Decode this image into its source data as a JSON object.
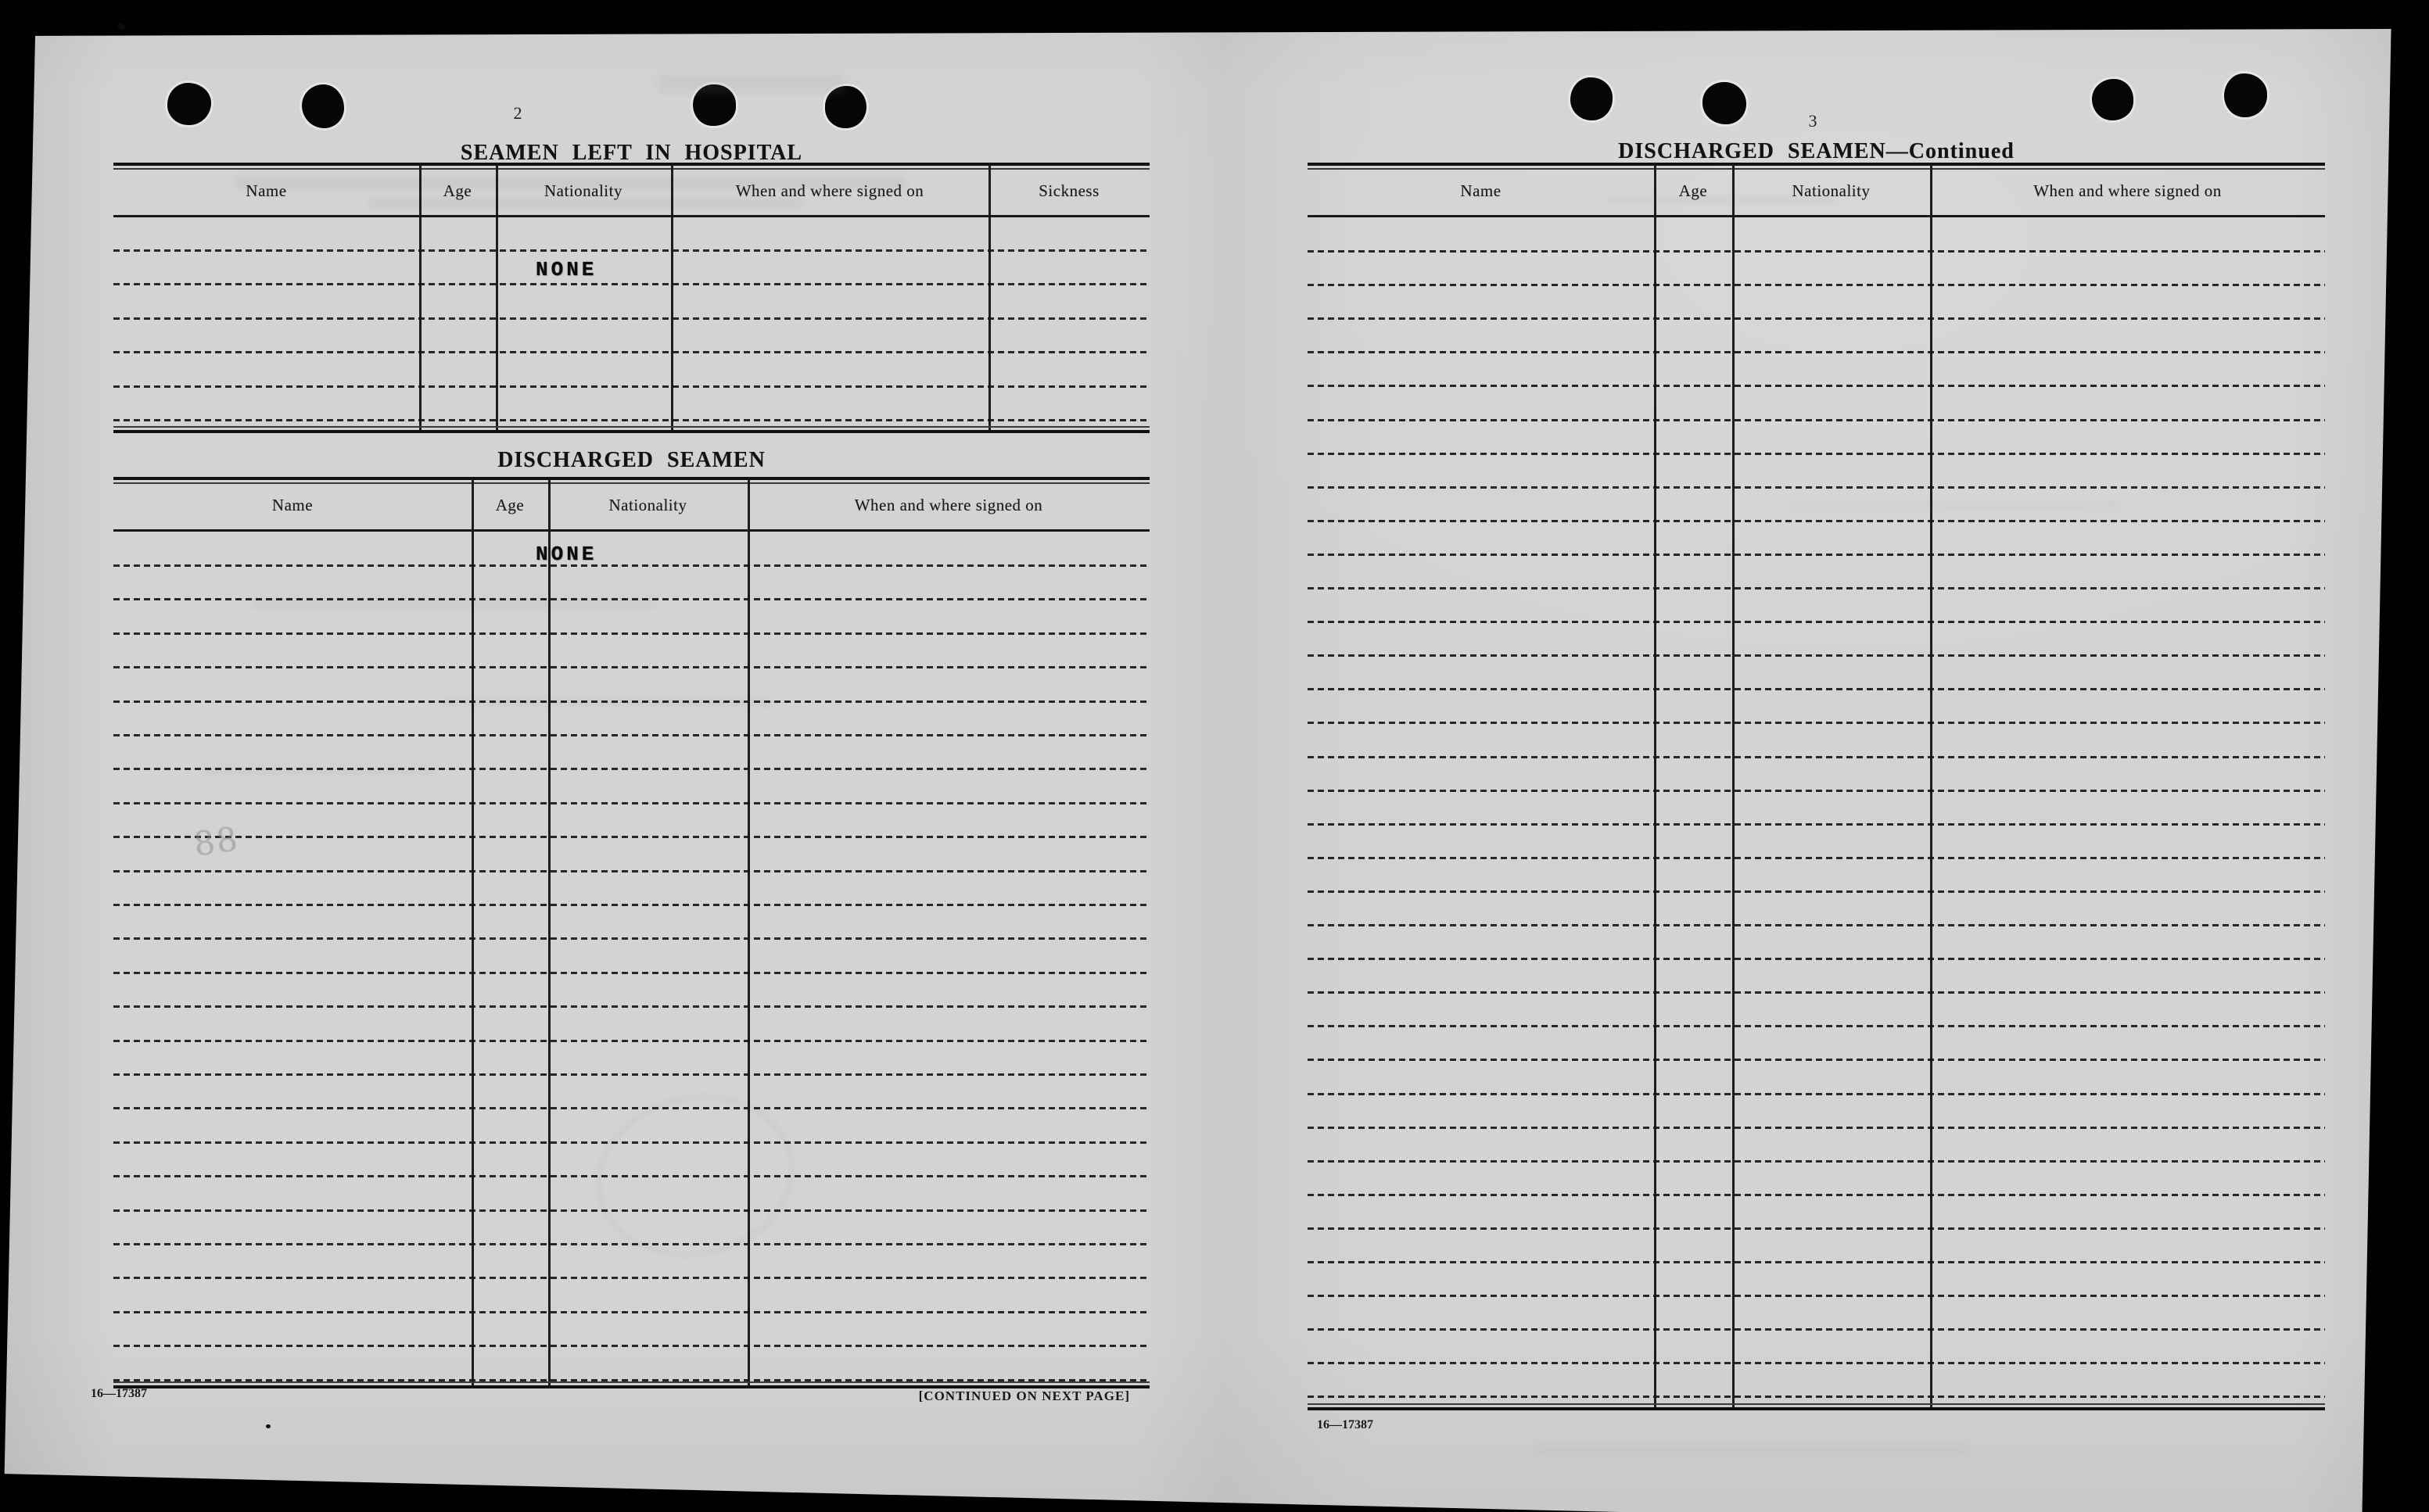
{
  "scan": {
    "paper_color": "#d3d4d2",
    "ink_color": "#1b1b1b",
    "background_color": "#000000"
  },
  "left_page": {
    "page_number": "2",
    "hospital_table": {
      "title": "SEAMEN LEFT IN HOSPITAL",
      "columns": [
        "Name",
        "Age",
        "Nationality",
        "When and where signed on",
        "Sickness"
      ],
      "entry": "NONE"
    },
    "discharged_table": {
      "title": "DISCHARGED SEAMEN",
      "columns": [
        "Name",
        "Age",
        "Nationality",
        "When and where signed on"
      ],
      "entry": "NONE"
    },
    "pencil_annotation": "88",
    "form_number": "16—17387",
    "continuation_note": "[CONTINUED ON NEXT PAGE]"
  },
  "right_page": {
    "page_number": "3",
    "table": {
      "title": "DISCHARGED SEAMEN—Continued",
      "columns": [
        "Name",
        "Age",
        "Nationality",
        "When and where signed on"
      ]
    },
    "form_number": "16—17387"
  }
}
